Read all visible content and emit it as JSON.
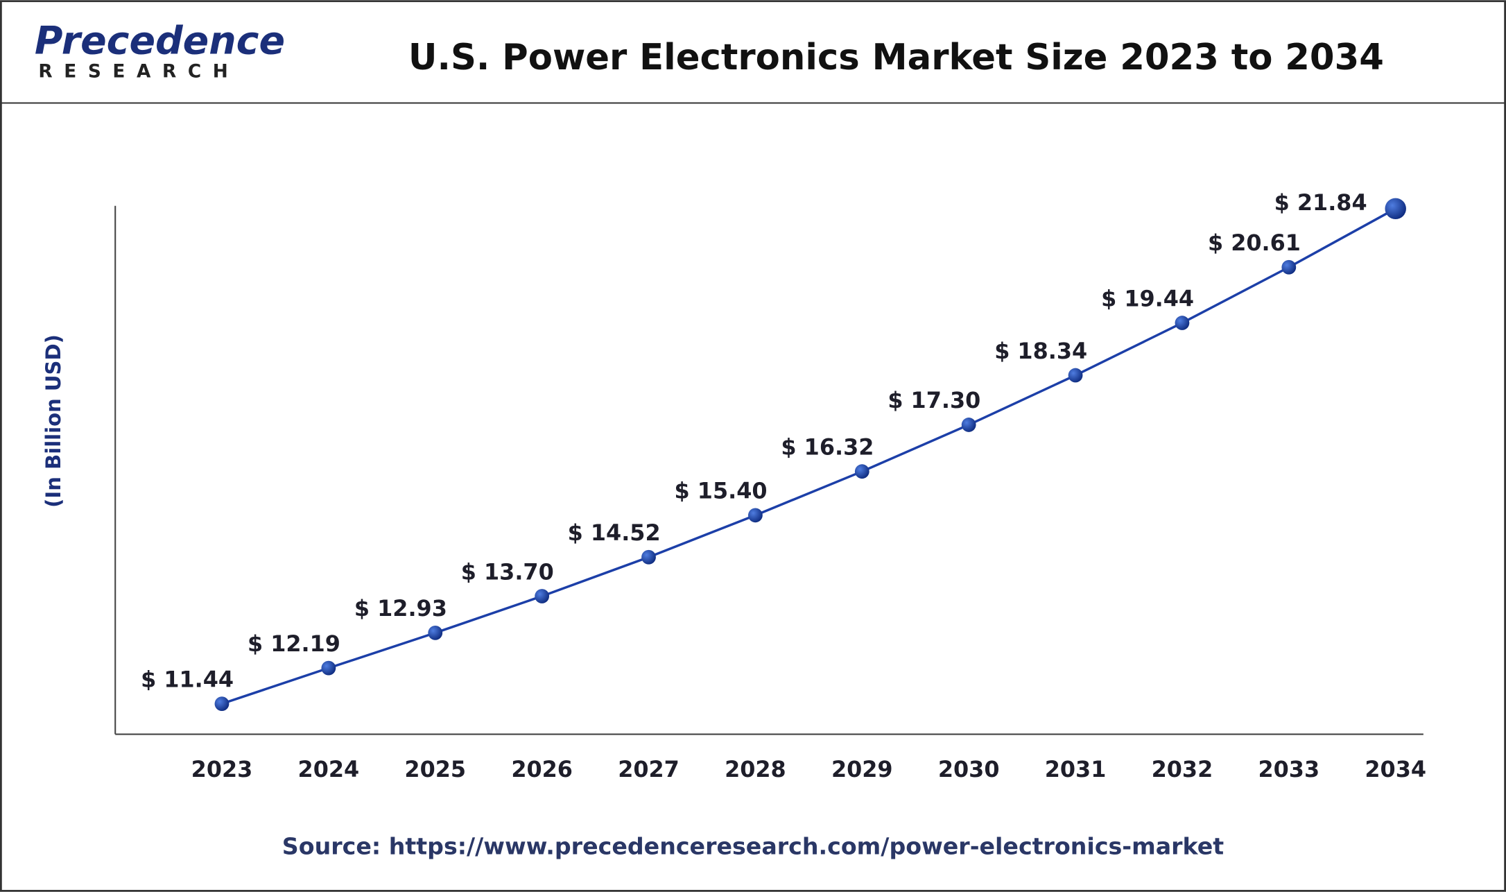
{
  "logo": {
    "name": "Precedence",
    "subname": "RESEARCH"
  },
  "chart_data": {
    "type": "line",
    "title": "U.S. Power Electronics Market Size 2023 to 2034",
    "y_label": "(In Billion USD)",
    "categories": [
      "2023",
      "2024",
      "2025",
      "2026",
      "2027",
      "2028",
      "2029",
      "2030",
      "2031",
      "2032",
      "2033",
      "2034"
    ],
    "series": [
      {
        "color": "#1c3fa8",
        "values": [
          11.44,
          12.19,
          12.93,
          13.7,
          14.52,
          15.4,
          16.32,
          17.3,
          18.34,
          19.44,
          20.61,
          21.84
        ],
        "value_labels": [
          "$ 11.44",
          "$ 12.19",
          "$ 12.93",
          "$ 13.70",
          "$ 14.52",
          "$ 15.40",
          "$ 16.32",
          "$ 17.30",
          "$ 18.34",
          "$ 19.44",
          "$ 20.61",
          "$ 21.84"
        ]
      }
    ],
    "ylim": [
      10.8,
      21.9
    ],
    "source": "Source: https://www.precedenceresearch.com/power-electronics-market"
  }
}
